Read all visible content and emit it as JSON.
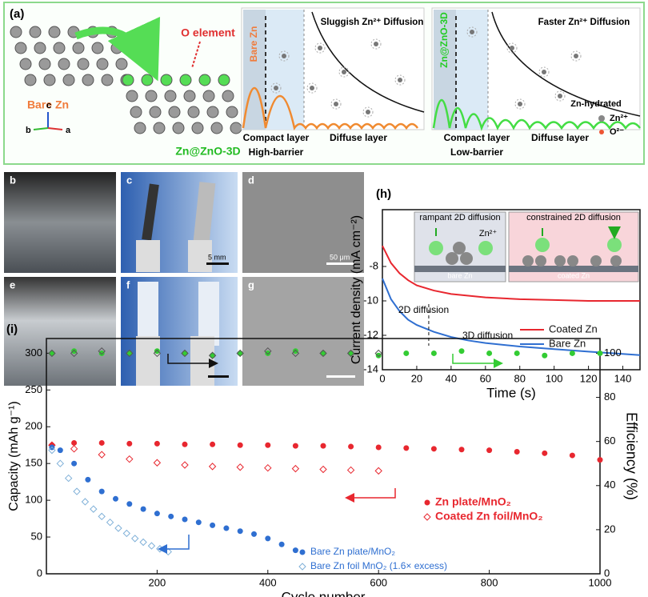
{
  "panel_a": {
    "label": "(a)",
    "o_element": "O element",
    "bare_zn": "Bare Zn",
    "coated": "Zn@ZnO-3D",
    "axes": [
      "c",
      "b",
      "a"
    ],
    "left_scheme": {
      "electrode": "Bare Zn",
      "title": "Sluggish Zn²⁺ Diffusion",
      "compact": "Compact layer",
      "barrier": "High-barrier",
      "diffuse": "Diffuse layer"
    },
    "right_scheme": {
      "electrode": "Zn@ZnO-3D",
      "title": "Faster Zn²⁺ Diffusion",
      "compact": "Compact layer",
      "barrier": "Low-barrier",
      "diffuse": "Diffuse layer",
      "legend": [
        "Zn-hydrated",
        "Zn²⁺",
        "O²⁻"
      ]
    }
  },
  "photos": {
    "labels": [
      "b",
      "c",
      "d",
      "e",
      "f",
      "g"
    ],
    "scale_bars": [
      "5 mm",
      "50 μm"
    ]
  },
  "chart_data": [
    {
      "type": "line",
      "label": "(h)",
      "xlabel": "Time (s)",
      "ylabel": "Current density (mA cm⁻²)",
      "x": [
        0,
        5,
        10,
        15,
        20,
        30,
        40,
        50,
        60,
        80,
        100,
        120,
        150
      ],
      "series": [
        {
          "name": "Coated Zn",
          "color": "#e8272f",
          "values": [
            -6.8,
            -7.8,
            -8.4,
            -8.8,
            -9.1,
            -9.4,
            -9.6,
            -9.7,
            -9.8,
            -9.9,
            -9.95,
            -10,
            -10
          ]
        },
        {
          "name": "Bare Zn",
          "color": "#2f6fd1",
          "values": [
            -8.7,
            -9.9,
            -10.6,
            -11.1,
            -11.4,
            -11.8,
            -12.1,
            -12.3,
            -12.45,
            -12.65,
            -12.8,
            -12.95,
            -13.15
          ]
        }
      ],
      "xlim": [
        0,
        150
      ],
      "xticks": [
        0,
        20,
        40,
        60,
        80,
        100,
        120,
        140
      ],
      "ylim": [
        -14,
        -4.7
      ],
      "yticks": [
        -14,
        -12,
        -10,
        -8
      ],
      "annotations": [
        "2D diffusion",
        "3D diffusion"
      ],
      "insets": [
        {
          "title": "rampant 2D diffusion",
          "label": "bare Zn",
          "ion": "Zn²⁺"
        },
        {
          "title": "constrained 2D diffusion",
          "label": "coated Zn"
        }
      ],
      "legend": "right"
    },
    {
      "type": "scatter",
      "label": "(i)",
      "xlabel": "Cycle number",
      "ylabel": "Capacity (mAh g⁻¹)",
      "y2label": "Efficiency (%)",
      "xlim": [
        0,
        1000
      ],
      "xticks": [
        200,
        400,
        600,
        800,
        1000
      ],
      "ylim": [
        0,
        320
      ],
      "yticks": [
        0,
        50,
        100,
        150,
        200,
        250,
        300
      ],
      "y2lim": [
        0,
        106.7
      ],
      "y2ticks": [
        0,
        20,
        40,
        60,
        80,
        100
      ],
      "series": [
        {
          "name": "Zn plate/MnO₂",
          "color": "#e8272f",
          "marker": "circle",
          "x": [
            10,
            50,
            100,
            150,
            200,
            250,
            300,
            350,
            400,
            450,
            500,
            550,
            600,
            650,
            700,
            750,
            800,
            850,
            900,
            950,
            1000
          ],
          "values": [
            175,
            178,
            178,
            177,
            177,
            176,
            176,
            175,
            175,
            174,
            174,
            173,
            172,
            171,
            170,
            169,
            168,
            166,
            164,
            161,
            155
          ]
        },
        {
          "name": "Coated Zn foil/MnO₂",
          "color": "#e8272f",
          "marker": "diamond",
          "x": [
            10,
            50,
            100,
            150,
            200,
            250,
            300,
            350,
            400,
            450,
            500,
            550,
            600
          ],
          "values": [
            175,
            170,
            162,
            156,
            151,
            148,
            146,
            145,
            144,
            143,
            142,
            141,
            140
          ]
        },
        {
          "name": "Bare Zn plate/MnO₂",
          "color": "#2f6fd1",
          "marker": "circle",
          "x": [
            10,
            25,
            50,
            75,
            100,
            125,
            150,
            175,
            200,
            225,
            250,
            275,
            300,
            325,
            350,
            375,
            400,
            425,
            450
          ],
          "values": [
            172,
            168,
            150,
            128,
            112,
            102,
            95,
            88,
            82,
            78,
            74,
            70,
            66,
            62,
            58,
            54,
            48,
            40,
            32
          ]
        },
        {
          "name": "Bare Zn foil MnO₂ (1.6× excess)",
          "color": "#7fb0d8",
          "marker": "diamond",
          "x": [
            10,
            25,
            40,
            55,
            70,
            85,
            100,
            115,
            130,
            145,
            160,
            175,
            190,
            205,
            220
          ],
          "values": [
            168,
            150,
            130,
            112,
            98,
            88,
            78,
            70,
            62,
            55,
            48,
            43,
            38,
            34,
            30
          ]
        },
        {
          "color": "#33cc33",
          "marker": "circle",
          "axis": "y2",
          "x": [
            10,
            50,
            100,
            150,
            200,
            250,
            300,
            350,
            400,
            450,
            500,
            550,
            600,
            650,
            700,
            750,
            800,
            850,
            900,
            950,
            1000
          ],
          "values": [
            100,
            101,
            100,
            100,
            101,
            100,
            99,
            100,
            100,
            101,
            100,
            100,
            99,
            100,
            100,
            101,
            100,
            100,
            99,
            100,
            100
          ]
        },
        {
          "color": "#555555",
          "marker": "diamond",
          "axis": "y2",
          "x": [
            10,
            50,
            100,
            150,
            200,
            250,
            300,
            350,
            400,
            450,
            500,
            550,
            600
          ],
          "values": [
            100,
            100,
            101,
            100,
            100,
            100,
            99,
            100,
            101,
            100,
            100,
            100,
            100
          ]
        }
      ]
    }
  ]
}
